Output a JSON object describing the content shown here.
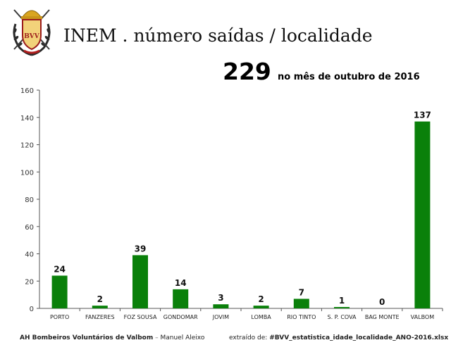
{
  "header": {
    "title": "INEM . número saídas / localidade",
    "total": "229",
    "total_caption": "no mês de outubro de 2016",
    "logo_text": "BVV"
  },
  "chart_data": {
    "type": "bar",
    "title": "",
    "xlabel": "",
    "ylabel": "",
    "categories": [
      "PORTO",
      "FANZERES",
      "FOZ SOUSA",
      "GONDOMAR",
      "JOVIM",
      "LOMBA",
      "RIO TINTO",
      "S. P. COVA",
      "BAG MONTE",
      "VALBOM"
    ],
    "values": [
      24,
      2,
      39,
      14,
      3,
      2,
      7,
      1,
      0,
      137
    ],
    "ylim": [
      0,
      160
    ],
    "yticks": [
      0,
      20,
      40,
      60,
      80,
      100,
      120,
      140,
      160
    ],
    "bar_color": "#0a800a",
    "grid": false,
    "legend": "none"
  },
  "footer": {
    "left_strong": "AH Bombeiros Voluntários de Valbom",
    "left_sep": " – ",
    "left_author": "Manuel Aleixo",
    "right_prefix": "extraído de: ",
    "right_source": "#BVV_estatistica_idade_localidade_ANO-2016.xlsx"
  }
}
